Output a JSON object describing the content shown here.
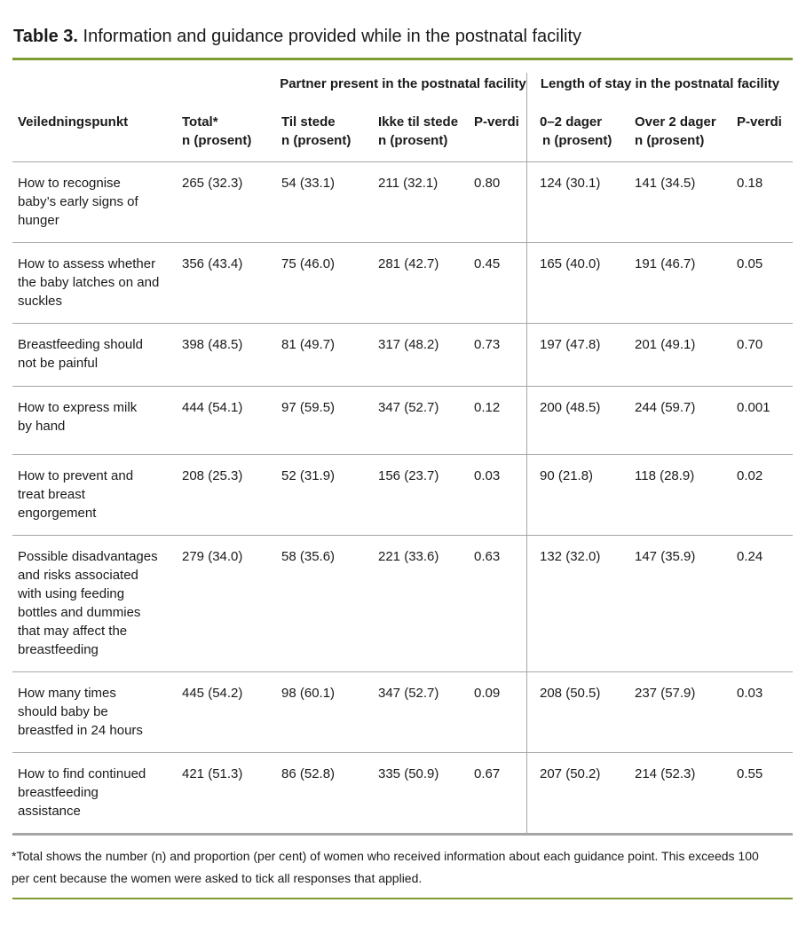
{
  "title": {
    "bold": "Table 3.",
    "rest": " Information and guidance provided while in the postnatal facility"
  },
  "table": {
    "group_headers": {
      "partner": "Partner present in the postnatal facility",
      "stay": "Length of stay in the postnatal facility"
    },
    "columns": {
      "guidance": "Veiledningspunkt",
      "total": {
        "line1": "Total*",
        "line2": "n (prosent)"
      },
      "til_stede": {
        "line1": "Til stede",
        "line2": "n (prosent)"
      },
      "ikke_til_stede": {
        "line1": "Ikke til stede",
        "line2": "n (prosent)"
      },
      "p_verdi_partner": "P-verdi",
      "dager_0_2": {
        "line1": "0–2 dager",
        "line2": "n (prosent)"
      },
      "over_2_dager": {
        "line1": "Over 2 dager",
        "line2": "n (prosent)"
      },
      "p_verdi_stay": "P-verdi"
    },
    "rows": [
      {
        "guidance": "How to recognise\nbaby’s early signs of\nhunger",
        "total": "265 (32.3)",
        "til_stede": "54 (33.1)",
        "ikke_til_stede": "211 (32.1)",
        "p_partner": "0.80",
        "dager_0_2": "124 (30.1)",
        "over_2_dager": "141 (34.5)",
        "p_stay": "0.18"
      },
      {
        "guidance": "How to assess whether\nthe baby latches on and\nsuckles",
        "total": "356 (43.4)",
        "til_stede": "75 (46.0)",
        "ikke_til_stede": "281 (42.7)",
        "p_partner": "0.45",
        "dager_0_2": "165 (40.0)",
        "over_2_dager": "191 (46.7)",
        "p_stay": "0.05"
      },
      {
        "guidance": "Breastfeeding should\nnot be painful",
        "total": "398 (48.5)",
        "til_stede": "81 (49.7)",
        "ikke_til_stede": "317 (48.2)",
        "p_partner": "0.73",
        "dager_0_2": "197 (47.8)",
        "over_2_dager": "201 (49.1)",
        "p_stay": "0.70"
      },
      {
        "guidance": "How to express milk\nby hand",
        "total": "444 (54.1)",
        "til_stede": "97 (59.5)",
        "ikke_til_stede": "347 (52.7)",
        "p_partner": "0.12",
        "dager_0_2": "200 (48.5)",
        "over_2_dager": "244 (59.7)",
        "p_stay": "0.001"
      },
      {
        "guidance": "How to prevent and\ntreat breast\nengorgement",
        "total": "208 (25.3)",
        "til_stede": "52 (31.9)",
        "ikke_til_stede": "156 (23.7)",
        "p_partner": "0.03",
        "dager_0_2": "90 (21.8)",
        "over_2_dager": "118 (28.9)",
        "p_stay": "0.02"
      },
      {
        "guidance": "Possible disadvantages\nand risks associated\nwith using feeding\nbottles and dummies\nthat may affect the\nbreastfeeding",
        "total": "279 (34.0)",
        "til_stede": "58 (35.6)",
        "ikke_til_stede": "221 (33.6)",
        "p_partner": "0.63",
        "dager_0_2": "132 (32.0)",
        "over_2_dager": "147 (35.9)",
        "p_stay": "0.24"
      },
      {
        "guidance": "How many times\nshould baby be\nbreastfed in 24 hours",
        "total": "445 (54.2)",
        "til_stede": "98 (60.1)",
        "ikke_til_stede": "347 (52.7)",
        "p_partner": "0.09",
        "dager_0_2": "208 (50.5)",
        "over_2_dager": "237 (57.9)",
        "p_stay": "0.03"
      },
      {
        "guidance": "How to find continued\nbreastfeeding\nassistance",
        "total": "421 (51.3)",
        "til_stede": "86 (52.8)",
        "ikke_til_stede": "335 (50.9)",
        "p_partner": "0.67",
        "dager_0_2": "207 (50.2)",
        "over_2_dager": "214 (52.3)",
        "p_stay": "0.55"
      }
    ]
  },
  "footnote": {
    "text": "*Total shows the number (n) and proportion (per cent) of women who received information about each guidance point. This exceeds 100\nper cent because the women were asked to tick all responses that applied."
  },
  "colors": {
    "accent_green": "#7e9c33",
    "line_gray": "#a6a6a6",
    "text": "#1a1a1a"
  }
}
